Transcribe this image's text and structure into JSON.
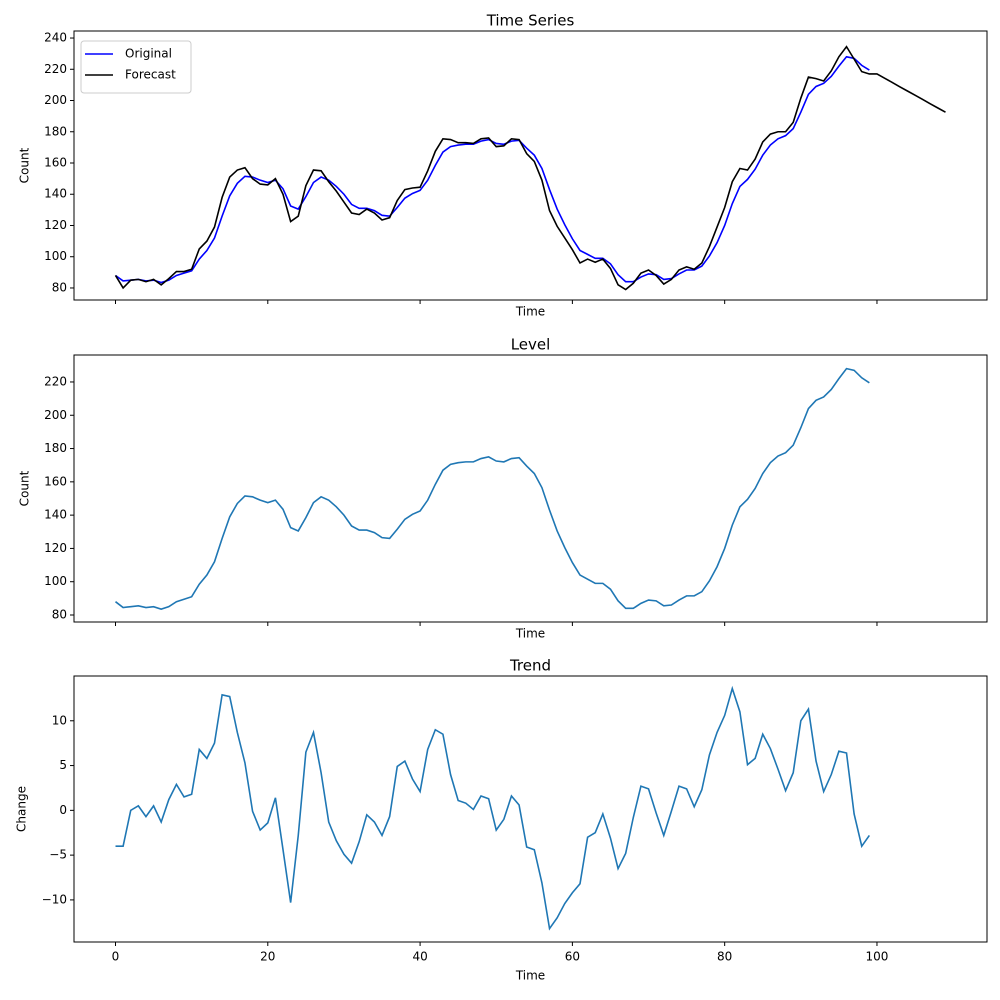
{
  "charts": [
    {
      "type": "line",
      "title": "Time Series",
      "x_label": "Time",
      "y_label": "Count",
      "x": [
        0,
        1,
        2,
        3,
        4,
        5,
        6,
        7,
        8,
        9,
        10,
        11,
        12,
        13,
        14,
        15,
        16,
        17,
        18,
        19,
        20,
        21,
        22,
        23,
        24,
        25,
        26,
        27,
        28,
        29,
        30,
        31,
        32,
        33,
        34,
        35,
        36,
        37,
        38,
        39,
        40,
        41,
        42,
        43,
        44,
        45,
        46,
        47,
        48,
        49,
        50,
        51,
        52,
        53,
        54,
        55,
        56,
        57,
        58,
        59,
        60,
        61,
        62,
        63,
        64,
        65,
        66,
        67,
        68,
        69,
        70,
        71,
        72,
        73,
        74,
        75,
        76,
        77,
        78,
        79,
        80,
        81,
        82,
        83,
        84,
        85,
        86,
        87,
        88,
        89,
        90,
        91,
        92,
        93,
        94,
        95,
        96,
        97,
        98,
        99,
        100,
        101,
        102,
        103,
        104,
        105,
        106,
        107,
        108,
        109
      ],
      "series": [
        {
          "name": "Original",
          "color": "#0000ff",
          "values": [
            88,
            84.5,
            85,
            85.5,
            84.5,
            85,
            83.5,
            85,
            88,
            89.5,
            91,
            98.5,
            104,
            112,
            126,
            139,
            147,
            151.5,
            151,
            149,
            147.5,
            149,
            143.5,
            132.5,
            130.5,
            138.5,
            147.5,
            151,
            149,
            145,
            140,
            133.5,
            131,
            131,
            129.5,
            126.5,
            126,
            131.5,
            137.5,
            140.5,
            142.5,
            149,
            158.5,
            167,
            170.5,
            171.5,
            172,
            172,
            174,
            175,
            172.5,
            172,
            174,
            174.5,
            169.5,
            165,
            156.5,
            143,
            130.5,
            120.5,
            111.5,
            104,
            101.5,
            99,
            99,
            95.5,
            88.5,
            84,
            84,
            87,
            89,
            88.5,
            85.5,
            86,
            89,
            91.5,
            91.5,
            94,
            100.5,
            109,
            120,
            134,
            145,
            149.5,
            156,
            165,
            171.5,
            175.5,
            177.5,
            182,
            192.5,
            204,
            209,
            211,
            215.5,
            222,
            228,
            227,
            222.5,
            219.5,
            null,
            null,
            null,
            null,
            null,
            null,
            null,
            null,
            null,
            null
          ]
        },
        {
          "name": "Forecast",
          "color": "#000000",
          "values": [
            88,
            80,
            85,
            85.5,
            84,
            85.5,
            82,
            86,
            90.5,
            90.5,
            92,
            105,
            110,
            119,
            138,
            151,
            155.5,
            157,
            150,
            146.5,
            146,
            150,
            140,
            122.5,
            126,
            145.5,
            155.5,
            155,
            148,
            142,
            135,
            128,
            127,
            130.5,
            128,
            123.5,
            125,
            136,
            143,
            144,
            144.5,
            155,
            167.5,
            175.5,
            175,
            173,
            173,
            172.5,
            175.5,
            176,
            170.5,
            171,
            175.5,
            175,
            166,
            161,
            149,
            129.5,
            119.5,
            112,
            104.5,
            96,
            98.5,
            96.5,
            98.5,
            92.5,
            82,
            79,
            83,
            89.5,
            91.5,
            88,
            82.5,
            85.5,
            91.5,
            93.5,
            92,
            96,
            106.5,
            119,
            131.5,
            148,
            156.5,
            155.5,
            162.5,
            173.5,
            178.5,
            180,
            180,
            186,
            201.5,
            215,
            214,
            212.5,
            219,
            228,
            234.5,
            226.5,
            218.5,
            217,
            217,
            214.3,
            211.6,
            208.8,
            206.1,
            203.4,
            200.7,
            197.9,
            195.2,
            192.5
          ]
        }
      ],
      "xlim": [
        -5.45,
        114.45
      ],
      "xticks": [
        0,
        20,
        40,
        60,
        80,
        100
      ],
      "show_xtick_labels": false,
      "ylim": [
        72.3,
        244.5
      ],
      "yticks": [
        80,
        100,
        120,
        140,
        160,
        180,
        200,
        220,
        240
      ],
      "legend": "upper left"
    },
    {
      "type": "line",
      "title": "Level",
      "x_label": "Time",
      "y_label": "Count",
      "x": [
        0,
        1,
        2,
        3,
        4,
        5,
        6,
        7,
        8,
        9,
        10,
        11,
        12,
        13,
        14,
        15,
        16,
        17,
        18,
        19,
        20,
        21,
        22,
        23,
        24,
        25,
        26,
        27,
        28,
        29,
        30,
        31,
        32,
        33,
        34,
        35,
        36,
        37,
        38,
        39,
        40,
        41,
        42,
        43,
        44,
        45,
        46,
        47,
        48,
        49,
        50,
        51,
        52,
        53,
        54,
        55,
        56,
        57,
        58,
        59,
        60,
        61,
        62,
        63,
        64,
        65,
        66,
        67,
        68,
        69,
        70,
        71,
        72,
        73,
        74,
        75,
        76,
        77,
        78,
        79,
        80,
        81,
        82,
        83,
        84,
        85,
        86,
        87,
        88,
        89,
        90,
        91,
        92,
        93,
        94,
        95,
        96,
        97,
        98,
        99
      ],
      "color": "#1f77b4",
      "values": [
        88,
        84.5,
        85,
        85.5,
        84.5,
        85,
        83.5,
        85,
        88,
        89.5,
        91,
        98.5,
        104,
        112,
        126,
        139,
        147,
        151.5,
        151,
        149,
        147.5,
        149,
        143.5,
        132.5,
        130.5,
        138.5,
        147.5,
        151,
        149,
        145,
        140,
        133.5,
        131,
        131,
        129.5,
        126.5,
        126,
        131.5,
        137.5,
        140.5,
        142.5,
        149,
        158.5,
        167,
        170.5,
        171.5,
        172,
        172,
        174,
        175,
        172.5,
        172,
        174,
        174.5,
        169.5,
        165,
        156.5,
        143,
        130.5,
        120.5,
        111.5,
        104,
        101.5,
        99,
        99,
        95.5,
        88.5,
        84,
        84,
        87,
        89,
        88.5,
        85.5,
        86,
        89,
        91.5,
        91.5,
        94,
        100.5,
        109,
        120,
        134,
        145,
        149.5,
        156,
        165,
        171.5,
        175.5,
        177.5,
        182,
        192.5,
        204,
        209,
        211,
        215.5,
        222,
        228,
        227,
        222.5,
        219.5
      ],
      "xlim": [
        -5.45,
        114.45
      ],
      "xticks": [
        0,
        20,
        40,
        60,
        80,
        100
      ],
      "show_xtick_labels": false,
      "ylim": [
        75.8,
        236.2
      ],
      "yticks": [
        80,
        100,
        120,
        140,
        160,
        180,
        200,
        220
      ]
    },
    {
      "type": "line",
      "title": "Trend",
      "x_label": "Time",
      "y_label": "Change",
      "x": [
        0,
        1,
        2,
        3,
        4,
        5,
        6,
        7,
        8,
        9,
        10,
        11,
        12,
        13,
        14,
        15,
        16,
        17,
        18,
        19,
        20,
        21,
        22,
        23,
        24,
        25,
        26,
        27,
        28,
        29,
        30,
        31,
        32,
        33,
        34,
        35,
        36,
        37,
        38,
        39,
        40,
        41,
        42,
        43,
        44,
        45,
        46,
        47,
        48,
        49,
        50,
        51,
        52,
        53,
        54,
        55,
        56,
        57,
        58,
        59,
        60,
        61,
        62,
        63,
        64,
        65,
        66,
        67,
        68,
        69,
        70,
        71,
        72,
        73,
        74,
        75,
        76,
        77,
        78,
        79,
        80,
        81,
        82,
        83,
        84,
        85,
        86,
        87,
        88,
        89,
        90,
        91,
        92,
        93,
        94,
        95,
        96,
        97,
        98,
        99
      ],
      "color": "#1f77b4",
      "values": [
        -4,
        -4,
        0,
        0.5,
        -0.7,
        0.5,
        -1.3,
        1.2,
        2.9,
        1.5,
        1.8,
        6.8,
        5.8,
        7.5,
        12.9,
        12.7,
        8.7,
        5.3,
        -0.1,
        -2.2,
        -1.4,
        1.4,
        -4.4,
        -10.3,
        -2.8,
        6.5,
        8.7,
        4.2,
        -1.3,
        -3.4,
        -4.9,
        -5.9,
        -3.5,
        -0.5,
        -1.3,
        -2.8,
        -0.7,
        4.9,
        5.5,
        3.5,
        2.1,
        6.8,
        9,
        8.5,
        4,
        1.1,
        0.8,
        0.1,
        1.6,
        1.3,
        -2.2,
        -1,
        1.6,
        0.6,
        -4.1,
        -4.4,
        -8.1,
        -13.2,
        -12,
        -10.4,
        -9.2,
        -8.2,
        -3,
        -2.5,
        -0.4,
        -3.1,
        -6.5,
        -4.8,
        -0.8,
        2.7,
        2.4,
        -0.3,
        -2.8,
        -0.1,
        2.7,
        2.4,
        0.4,
        2.3,
        6.2,
        8.7,
        10.6,
        13.6,
        11,
        5.1,
        5.8,
        8.5,
        6.9,
        4.6,
        2.2,
        4.2,
        10,
        11.3,
        5.5,
        2.1,
        4,
        6.6,
        6.4,
        -0.4,
        -4,
        -2.8
      ],
      "xlim": [
        -5.45,
        114.45
      ],
      "xticks": [
        0,
        20,
        40,
        60,
        80,
        100
      ],
      "show_xtick_labels": true,
      "ylim": [
        -14.7,
        15.0
      ],
      "yticks": [
        {
          "value": -10,
          "label": "−10"
        },
        {
          "value": -5,
          "label": "−5"
        },
        0,
        5,
        10
      ]
    }
  ]
}
